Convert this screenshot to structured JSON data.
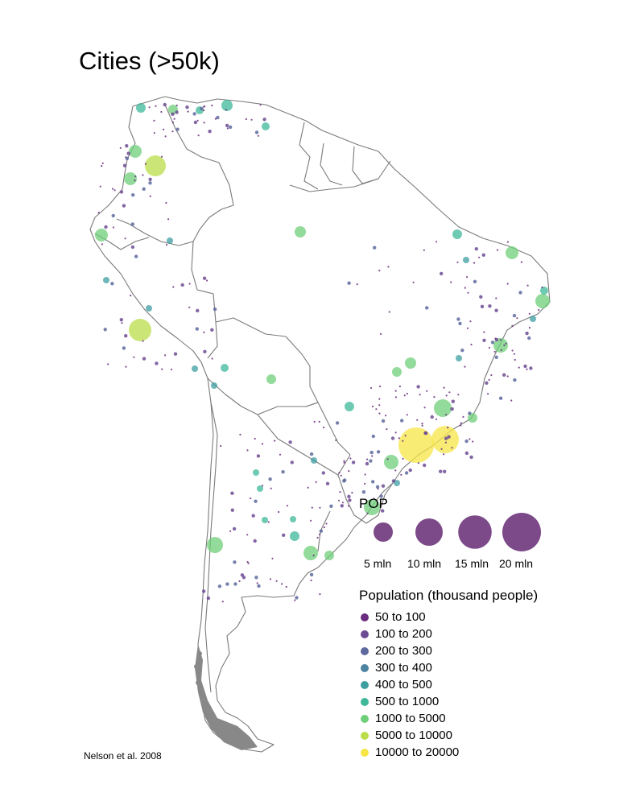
{
  "title": "Cities (>50k)",
  "credit": "Nelson et al. 2008",
  "size_legend": {
    "title": "POP",
    "items": [
      {
        "label": "5 mln",
        "value_mln": 5
      },
      {
        "label": "10 mln",
        "value_mln": 10
      },
      {
        "label": "15 mln",
        "value_mln": 15
      },
      {
        "label": "20 mln",
        "value_mln": 20
      }
    ],
    "color": "#5b1b6b"
  },
  "color_legend": {
    "title": "Population (thousand people)",
    "items": [
      {
        "label": "50 to 100",
        "color": "#6a2c7e"
      },
      {
        "label": "100 to 200",
        "color": "#6d4b93"
      },
      {
        "label": "200 to 300",
        "color": "#5e6a9e"
      },
      {
        "label": "300 to 400",
        "color": "#4c84a2"
      },
      {
        "label": "400 to 500",
        "color": "#3d9ea2"
      },
      {
        "label": "500 to 1000",
        "color": "#3fb89a"
      },
      {
        "label": "1000 to 5000",
        "color": "#6fcf78"
      },
      {
        "label": "5000 to 10000",
        "color": "#b9de4a"
      },
      {
        "label": "10000 to 20000",
        "color": "#f7e545"
      }
    ]
  }
}
